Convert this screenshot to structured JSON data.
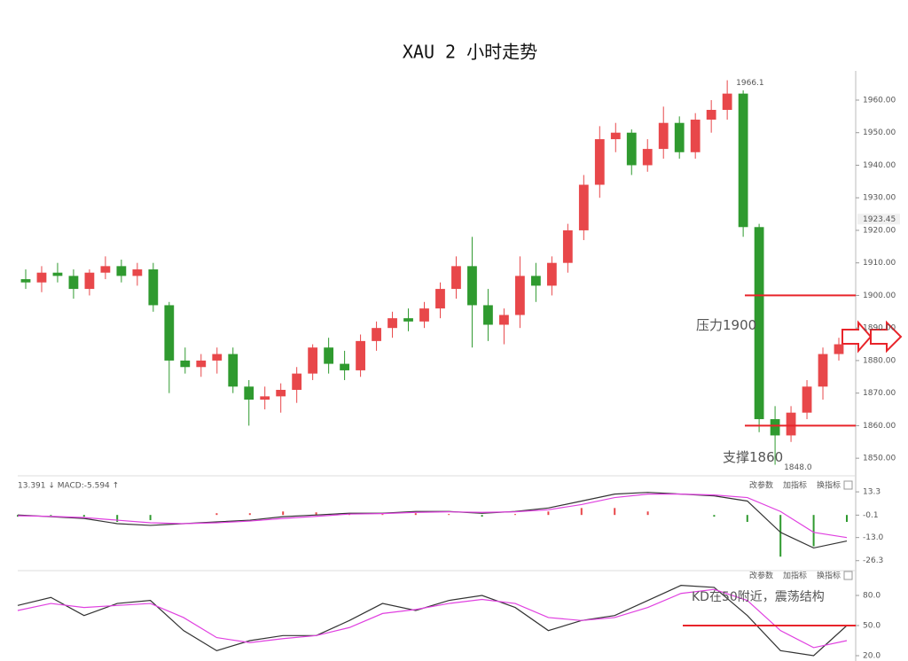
{
  "chart_data": [
    {
      "type": "candlestick",
      "title": "XAU 2 小时走势",
      "open": [
        1905,
        1904,
        1907,
        1906,
        1902,
        1907,
        1909,
        1906,
        1908,
        1897,
        1880,
        1878,
        1880,
        1882,
        1872,
        1868,
        1869,
        1871,
        1876,
        1884,
        1879,
        1877,
        1886,
        1890,
        1893,
        1892,
        1896,
        1902,
        1909,
        1897,
        1891,
        1894,
        1906,
        1903,
        1910,
        1920,
        1934,
        1948,
        1950,
        1940,
        1945,
        1953,
        1944,
        1954,
        1957,
        1962,
        1921,
        1862,
        1857,
        1864,
        1872,
        1882
      ],
      "high": [
        1908,
        1909,
        1910,
        1908,
        1908,
        1912,
        1911,
        1910,
        1910,
        1898,
        1884,
        1882,
        1884,
        1884,
        1874,
        1872,
        1873,
        1878,
        1885,
        1887,
        1883,
        1888,
        1892,
        1895,
        1896,
        1898,
        1904,
        1912,
        1918,
        1902,
        1896,
        1912,
        1910,
        1912,
        1922,
        1937,
        1952,
        1953,
        1951,
        1948,
        1958,
        1955,
        1956,
        1960,
        1966.1,
        1963,
        1922,
        1866,
        1866,
        1874,
        1884,
        1887
      ],
      "low": [
        1902,
        1901,
        1904,
        1899,
        1900,
        1905,
        1904,
        1903,
        1895,
        1870,
        1876,
        1875,
        1876,
        1870,
        1860,
        1865,
        1864,
        1867,
        1874,
        1876,
        1874,
        1875,
        1883,
        1887,
        1889,
        1890,
        1893,
        1899,
        1884,
        1886,
        1885,
        1890,
        1898,
        1900,
        1907,
        1917,
        1930,
        1944,
        1937,
        1938,
        1942,
        1942,
        1942,
        1950,
        1954,
        1918,
        1858,
        1848,
        1855,
        1862,
        1868,
        1880
      ],
      "close": [
        1904,
        1907,
        1906,
        1902,
        1907,
        1909,
        1906,
        1908,
        1897,
        1880,
        1878,
        1880,
        1882,
        1872,
        1868,
        1869,
        1871,
        1876,
        1884,
        1879,
        1877,
        1886,
        1890,
        1893,
        1892,
        1896,
        1902,
        1909,
        1897,
        1891,
        1894,
        1906,
        1903,
        1910,
        1920,
        1934,
        1948,
        1950,
        1940,
        1945,
        1953,
        1944,
        1954,
        1957,
        1962,
        1921,
        1862,
        1857,
        1864,
        1872,
        1882,
        1885
      ],
      "up_color": "#e8474a",
      "down_color": "#2f9a2f",
      "ylim": [
        1846.5,
        1966.8
      ],
      "yticks": [
        {
          "value": 1850,
          "label": "1850.00"
        },
        {
          "value": 1860,
          "label": "1860.00"
        },
        {
          "value": 1870,
          "label": "1870.00"
        },
        {
          "value": 1880,
          "label": "1880.00"
        },
        {
          "value": 1890,
          "label": "1890.00"
        },
        {
          "value": 1900,
          "label": "1900.00"
        },
        {
          "value": 1910,
          "label": "1910.00"
        },
        {
          "value": 1920,
          "label": "1920.00"
        },
        {
          "value": 1930,
          "label": "1930.00"
        },
        {
          "value": 1940,
          "label": "1940.00"
        },
        {
          "value": 1950,
          "label": "1950.00"
        },
        {
          "value": 1960,
          "label": "1960.00"
        }
      ],
      "price_tag": 1923.45,
      "high_label": "1966.1",
      "low_label": "1848.0",
      "levels": [
        {
          "value": 1900,
          "label": "压力1900"
        },
        {
          "value": 1860,
          "label": "支撑1860"
        }
      ],
      "level_color": "#e8242a"
    },
    {
      "type": "macd",
      "header": "13.391 ↓ MACD:-5.594 ↑",
      "buttons": [
        "改参数",
        "加指标",
        "换指标"
      ],
      "series": [
        {
          "color": "#333333",
          "values": [
            0,
            -1,
            -2,
            -5,
            -6,
            -5,
            -4,
            -3,
            -1,
            0,
            1,
            1,
            2,
            2,
            1,
            2,
            4,
            8,
            12,
            13,
            12,
            11,
            8,
            -10,
            -19,
            -15
          ]
        },
        {
          "color": "#e040e0",
          "values": [
            -0.5,
            -0.8,
            -1.5,
            -3,
            -4.5,
            -5,
            -4.5,
            -3.5,
            -2,
            -0.8,
            0.5,
            0.8,
            1.5,
            1.8,
            1.5,
            1.8,
            3,
            6,
            10,
            12,
            12,
            11.5,
            10,
            2,
            -10,
            -13
          ]
        }
      ],
      "histogram": {
        "values": [
          -1,
          -0.5,
          -1,
          -4,
          -3,
          0,
          1,
          1,
          2,
          1.5,
          1,
          0.5,
          1,
          0.5,
          -1,
          0.5,
          2,
          4,
          4,
          2,
          0,
          -1,
          -4,
          -24,
          -18,
          -4
        ],
        "up_color": "#e8474a",
        "down_color": "#2f9a2f"
      },
      "ylim": [
        -30,
        21
      ],
      "yticks": [
        13.3,
        -0.1,
        {
          "value": -13,
          "label": "-13.0"
        },
        -26.3
      ]
    },
    {
      "type": "kd",
      "buttons": [
        "改参数",
        "加指标",
        "换指标"
      ],
      "series": [
        {
          "color": "#333333",
          "values": [
            70,
            78,
            60,
            72,
            75,
            45,
            25,
            35,
            40,
            40,
            55,
            72,
            65,
            75,
            80,
            68,
            45,
            55,
            60,
            75,
            90,
            88,
            60,
            25,
            20,
            50
          ]
        },
        {
          "color": "#e040e0",
          "values": [
            65,
            72,
            68,
            70,
            72,
            58,
            38,
            33,
            37,
            40,
            48,
            62,
            66,
            72,
            76,
            72,
            58,
            55,
            58,
            68,
            82,
            86,
            75,
            45,
            28,
            35
          ]
        }
      ],
      "ylim": [
        14.7,
        95
      ],
      "yticks": [
        {
          "value": 80,
          "label": "80.0"
        },
        {
          "value": 50,
          "label": "50.0"
        },
        {
          "value": 20,
          "label": "20.0"
        }
      ],
      "annotation": "KD在50附近，震荡结构",
      "level": 50,
      "level_color": "#e8242a"
    }
  ]
}
